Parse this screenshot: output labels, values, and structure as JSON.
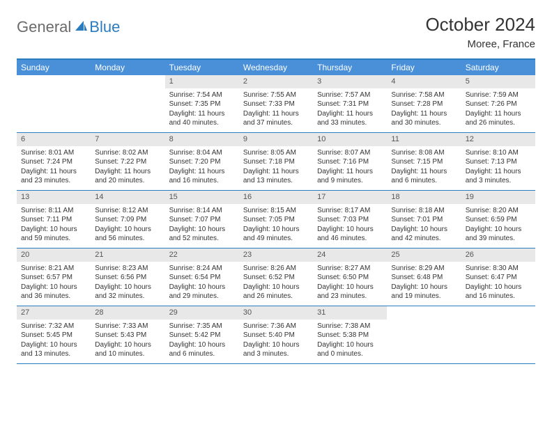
{
  "logo": {
    "part1": "General",
    "part2": "Blue"
  },
  "title": "October 2024",
  "subtitle": "Moree, France",
  "colors": {
    "header_bg": "#4a90d9",
    "header_text": "#ffffff",
    "border": "#2b7bbf",
    "daynum_bg": "#e8e8e8",
    "text": "#333333",
    "logo_gray": "#6b6b6b",
    "logo_blue": "#2b7bbf"
  },
  "day_names": [
    "Sunday",
    "Monday",
    "Tuesday",
    "Wednesday",
    "Thursday",
    "Friday",
    "Saturday"
  ],
  "weeks": [
    [
      {
        "n": "",
        "lines": []
      },
      {
        "n": "",
        "lines": []
      },
      {
        "n": "1",
        "lines": [
          "Sunrise: 7:54 AM",
          "Sunset: 7:35 PM",
          "Daylight: 11 hours and 40 minutes."
        ]
      },
      {
        "n": "2",
        "lines": [
          "Sunrise: 7:55 AM",
          "Sunset: 7:33 PM",
          "Daylight: 11 hours and 37 minutes."
        ]
      },
      {
        "n": "3",
        "lines": [
          "Sunrise: 7:57 AM",
          "Sunset: 7:31 PM",
          "Daylight: 11 hours and 33 minutes."
        ]
      },
      {
        "n": "4",
        "lines": [
          "Sunrise: 7:58 AM",
          "Sunset: 7:28 PM",
          "Daylight: 11 hours and 30 minutes."
        ]
      },
      {
        "n": "5",
        "lines": [
          "Sunrise: 7:59 AM",
          "Sunset: 7:26 PM",
          "Daylight: 11 hours and 26 minutes."
        ]
      }
    ],
    [
      {
        "n": "6",
        "lines": [
          "Sunrise: 8:01 AM",
          "Sunset: 7:24 PM",
          "Daylight: 11 hours and 23 minutes."
        ]
      },
      {
        "n": "7",
        "lines": [
          "Sunrise: 8:02 AM",
          "Sunset: 7:22 PM",
          "Daylight: 11 hours and 20 minutes."
        ]
      },
      {
        "n": "8",
        "lines": [
          "Sunrise: 8:04 AM",
          "Sunset: 7:20 PM",
          "Daylight: 11 hours and 16 minutes."
        ]
      },
      {
        "n": "9",
        "lines": [
          "Sunrise: 8:05 AM",
          "Sunset: 7:18 PM",
          "Daylight: 11 hours and 13 minutes."
        ]
      },
      {
        "n": "10",
        "lines": [
          "Sunrise: 8:07 AM",
          "Sunset: 7:16 PM",
          "Daylight: 11 hours and 9 minutes."
        ]
      },
      {
        "n": "11",
        "lines": [
          "Sunrise: 8:08 AM",
          "Sunset: 7:15 PM",
          "Daylight: 11 hours and 6 minutes."
        ]
      },
      {
        "n": "12",
        "lines": [
          "Sunrise: 8:10 AM",
          "Sunset: 7:13 PM",
          "Daylight: 11 hours and 3 minutes."
        ]
      }
    ],
    [
      {
        "n": "13",
        "lines": [
          "Sunrise: 8:11 AM",
          "Sunset: 7:11 PM",
          "Daylight: 10 hours and 59 minutes."
        ]
      },
      {
        "n": "14",
        "lines": [
          "Sunrise: 8:12 AM",
          "Sunset: 7:09 PM",
          "Daylight: 10 hours and 56 minutes."
        ]
      },
      {
        "n": "15",
        "lines": [
          "Sunrise: 8:14 AM",
          "Sunset: 7:07 PM",
          "Daylight: 10 hours and 52 minutes."
        ]
      },
      {
        "n": "16",
        "lines": [
          "Sunrise: 8:15 AM",
          "Sunset: 7:05 PM",
          "Daylight: 10 hours and 49 minutes."
        ]
      },
      {
        "n": "17",
        "lines": [
          "Sunrise: 8:17 AM",
          "Sunset: 7:03 PM",
          "Daylight: 10 hours and 46 minutes."
        ]
      },
      {
        "n": "18",
        "lines": [
          "Sunrise: 8:18 AM",
          "Sunset: 7:01 PM",
          "Daylight: 10 hours and 42 minutes."
        ]
      },
      {
        "n": "19",
        "lines": [
          "Sunrise: 8:20 AM",
          "Sunset: 6:59 PM",
          "Daylight: 10 hours and 39 minutes."
        ]
      }
    ],
    [
      {
        "n": "20",
        "lines": [
          "Sunrise: 8:21 AM",
          "Sunset: 6:57 PM",
          "Daylight: 10 hours and 36 minutes."
        ]
      },
      {
        "n": "21",
        "lines": [
          "Sunrise: 8:23 AM",
          "Sunset: 6:56 PM",
          "Daylight: 10 hours and 32 minutes."
        ]
      },
      {
        "n": "22",
        "lines": [
          "Sunrise: 8:24 AM",
          "Sunset: 6:54 PM",
          "Daylight: 10 hours and 29 minutes."
        ]
      },
      {
        "n": "23",
        "lines": [
          "Sunrise: 8:26 AM",
          "Sunset: 6:52 PM",
          "Daylight: 10 hours and 26 minutes."
        ]
      },
      {
        "n": "24",
        "lines": [
          "Sunrise: 8:27 AM",
          "Sunset: 6:50 PM",
          "Daylight: 10 hours and 23 minutes."
        ]
      },
      {
        "n": "25",
        "lines": [
          "Sunrise: 8:29 AM",
          "Sunset: 6:48 PM",
          "Daylight: 10 hours and 19 minutes."
        ]
      },
      {
        "n": "26",
        "lines": [
          "Sunrise: 8:30 AM",
          "Sunset: 6:47 PM",
          "Daylight: 10 hours and 16 minutes."
        ]
      }
    ],
    [
      {
        "n": "27",
        "lines": [
          "Sunrise: 7:32 AM",
          "Sunset: 5:45 PM",
          "Daylight: 10 hours and 13 minutes."
        ]
      },
      {
        "n": "28",
        "lines": [
          "Sunrise: 7:33 AM",
          "Sunset: 5:43 PM",
          "Daylight: 10 hours and 10 minutes."
        ]
      },
      {
        "n": "29",
        "lines": [
          "Sunrise: 7:35 AM",
          "Sunset: 5:42 PM",
          "Daylight: 10 hours and 6 minutes."
        ]
      },
      {
        "n": "30",
        "lines": [
          "Sunrise: 7:36 AM",
          "Sunset: 5:40 PM",
          "Daylight: 10 hours and 3 minutes."
        ]
      },
      {
        "n": "31",
        "lines": [
          "Sunrise: 7:38 AM",
          "Sunset: 5:38 PM",
          "Daylight: 10 hours and 0 minutes."
        ]
      },
      {
        "n": "",
        "lines": []
      },
      {
        "n": "",
        "lines": []
      }
    ]
  ]
}
